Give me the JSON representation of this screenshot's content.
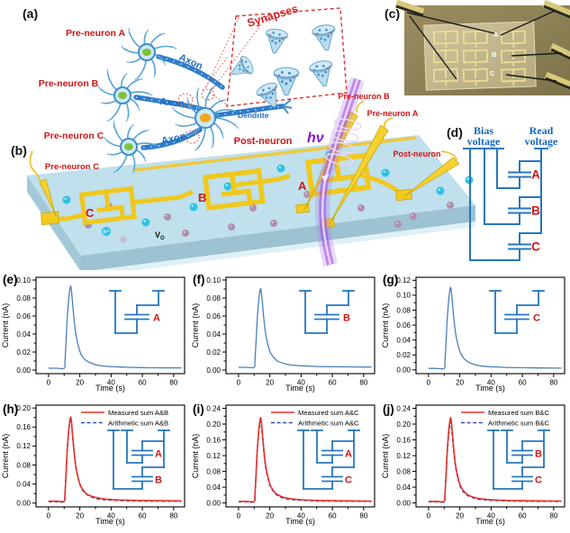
{
  "colors": {
    "curve_blue": "#4a80b8",
    "dash_blue": "#2b52a8",
    "measured_red": "#e8322a",
    "circuit_blue": "#2777bd",
    "label_red": "#cf1616",
    "axon_blue": "#1e6ec6",
    "electrode_yellow": "#f0c81c",
    "beam_purple": "#9f4ae0",
    "bias_text_blue": "#1565c0"
  },
  "panel_a": {
    "label": "(a)",
    "pre_a": "Pre-neuron A",
    "pre_b": "Pre-neuron B",
    "pre_c": "Pre-neuron C",
    "axon": "Axon",
    "dendrite": "Dendrite",
    "post": "Post-neuron",
    "synapses": "Synapses"
  },
  "panel_b": {
    "label": "(b)",
    "pre_c": "Pre-neuron C",
    "pre_b": "Pre-neuron B",
    "pre_a": "Pre-neuron A",
    "post": "Post-neuron",
    "light": "hν",
    "elec_a": "A",
    "elec_b": "B",
    "elec_c": "C",
    "hole": "h⁺",
    "vo_main": "V",
    "vo_sub": "O"
  },
  "panel_c": {
    "label": "(c)",
    "a": "A",
    "b": "B",
    "c": "C"
  },
  "panel_d": {
    "label": "(d)",
    "bias1": "Bias",
    "bias2": "voltage",
    "read1": "Read",
    "read2": "voltage",
    "caps": [
      "A",
      "B",
      "C"
    ]
  },
  "chart_data": [
    {
      "id": "e",
      "panel_label": "(e)",
      "type": "line",
      "xlabel": "Time (s)",
      "ylabel": "Current (nA)",
      "xlim": [
        -8,
        87
      ],
      "ylim": [
        -0.004,
        0.103
      ],
      "xticks": [
        0,
        20,
        40,
        60,
        80
      ],
      "xtick_labels": [
        "0",
        "20",
        "40",
        "60",
        "80"
      ],
      "yticks": [
        0,
        0.02,
        0.04,
        0.06,
        0.08,
        0.1
      ],
      "ytick_labels": [
        "0.00",
        "0.02",
        "0.04",
        "0.06",
        "0.08",
        "0.10"
      ],
      "legend": false,
      "inset_caps": [
        "A"
      ],
      "x": [
        0,
        5,
        10,
        10.5,
        11,
        11.5,
        12,
        13,
        14,
        14.5,
        15,
        16,
        17,
        18,
        20,
        22,
        25,
        30,
        35,
        40,
        50,
        60,
        70,
        85
      ],
      "series": [
        {
          "name": "A",
          "color": "#4a80b8",
          "dash": false,
          "y": [
            0.002,
            0.002,
            0.002,
            0.009,
            0.025,
            0.043,
            0.058,
            0.081,
            0.093,
            0.09,
            0.082,
            0.062,
            0.046,
            0.035,
            0.021,
            0.014,
            0.0095,
            0.006,
            0.0045,
            0.0038,
            0.0031,
            0.0027,
            0.0025,
            0.0024
          ]
        }
      ]
    },
    {
      "id": "f",
      "panel_label": "(f)",
      "type": "line",
      "xlabel": "Time (s)",
      "ylabel": "Current (nA)",
      "xlim": [
        -8,
        87
      ],
      "ylim": [
        -0.004,
        0.103
      ],
      "xticks": [
        0,
        20,
        40,
        60,
        80
      ],
      "xtick_labels": [
        "0",
        "20",
        "40",
        "60",
        "80"
      ],
      "yticks": [
        0,
        0.02,
        0.04,
        0.06,
        0.08,
        0.1
      ],
      "ytick_labels": [
        "0.00",
        "0.02",
        "0.04",
        "0.06",
        "0.08",
        "0.10"
      ],
      "legend": false,
      "inset_caps": [
        "B"
      ],
      "x": [
        0,
        5,
        10,
        10.5,
        11,
        11.5,
        12,
        13,
        14,
        14.5,
        15,
        16,
        17,
        18,
        20,
        22,
        25,
        30,
        35,
        40,
        50,
        60,
        70,
        85
      ],
      "series": [
        {
          "name": "B",
          "color": "#4a80b8",
          "dash": false,
          "y": [
            0.003,
            0.003,
            0.003,
            0.01,
            0.025,
            0.042,
            0.057,
            0.079,
            0.09,
            0.087,
            0.08,
            0.06,
            0.045,
            0.034,
            0.021,
            0.015,
            0.01,
            0.0068,
            0.0054,
            0.0047,
            0.004,
            0.0037,
            0.0035,
            0.0033
          ]
        }
      ]
    },
    {
      "id": "g",
      "panel_label": "(g)",
      "type": "line",
      "xlabel": "Time (s)",
      "ylabel": "Current (nA)",
      "xlim": [
        -8,
        87
      ],
      "ylim": [
        -0.005,
        0.124
      ],
      "xticks": [
        0,
        20,
        40,
        60,
        80
      ],
      "xtick_labels": [
        "0",
        "20",
        "40",
        "60",
        "80"
      ],
      "yticks": [
        0,
        0.02,
        0.04,
        0.06,
        0.08,
        0.1,
        0.12
      ],
      "ytick_labels": [
        "0.00",
        "0.02",
        "0.04",
        "0.06",
        "0.08",
        "0.10",
        "0.12"
      ],
      "legend": false,
      "inset_caps": [
        "C"
      ],
      "x": [
        0,
        5,
        10,
        10.5,
        11,
        11.5,
        12,
        13,
        14,
        14.5,
        15,
        16,
        17,
        18,
        20,
        22,
        25,
        30,
        35,
        40,
        50,
        60,
        70,
        85
      ],
      "series": [
        {
          "name": "C",
          "color": "#4a80b8",
          "dash": false,
          "y": [
            0.002,
            0.002,
            0.002,
            0.011,
            0.029,
            0.051,
            0.069,
            0.096,
            0.11,
            0.107,
            0.097,
            0.073,
            0.054,
            0.041,
            0.025,
            0.017,
            0.011,
            0.0068,
            0.005,
            0.0042,
            0.0033,
            0.0029,
            0.0026,
            0.0024
          ]
        }
      ]
    },
    {
      "id": "h",
      "panel_label": "(h)",
      "type": "line",
      "xlabel": "Time (s)",
      "ylabel": "Current (nA)",
      "xlim": [
        -8,
        87
      ],
      "ylim": [
        -0.008,
        0.206
      ],
      "xticks": [
        0,
        20,
        40,
        60,
        80
      ],
      "xtick_labels": [
        "0",
        "20",
        "40",
        "60",
        "80"
      ],
      "yticks": [
        0,
        0.04,
        0.08,
        0.12,
        0.16,
        0.2
      ],
      "ytick_labels": [
        "0.00",
        "0.04",
        "0.08",
        "0.12",
        "0.16",
        "0.20"
      ],
      "legend": true,
      "inset_caps": [
        "A",
        "B"
      ],
      "x": [
        0,
        5,
        10,
        10.5,
        11,
        11.5,
        12,
        13,
        14,
        14.5,
        15,
        16,
        17,
        18,
        20,
        22,
        25,
        30,
        35,
        40,
        50,
        60,
        70,
        85
      ],
      "series": [
        {
          "name": "Arithmetic sum A&B",
          "color": "#2b52a8",
          "dash": true,
          "y": [
            0.003,
            0.003,
            0.003,
            0.017,
            0.047,
            0.082,
            0.112,
            0.155,
            0.178,
            0.173,
            0.157,
            0.119,
            0.087,
            0.066,
            0.04,
            0.026,
            0.017,
            0.01,
            0.0074,
            0.0062,
            0.005,
            0.0044,
            0.0041,
            0.0038
          ]
        },
        {
          "name": "Measured sum A&B",
          "color": "#e8322a",
          "dash": false,
          "y": [
            0.004,
            0.004,
            0.004,
            0.018,
            0.048,
            0.083,
            0.113,
            0.157,
            0.18,
            0.175,
            0.159,
            0.12,
            0.089,
            0.067,
            0.041,
            0.028,
            0.018,
            0.012,
            0.0089,
            0.0075,
            0.0061,
            0.0054,
            0.0051,
            0.0047
          ]
        }
      ]
    },
    {
      "id": "i",
      "panel_label": "(i)",
      "type": "line",
      "xlabel": "Time (s)",
      "ylabel": "Current (nA)",
      "xlim": [
        -8,
        87
      ],
      "ylim": [
        -0.01,
        0.248
      ],
      "xticks": [
        0,
        20,
        40,
        60,
        80
      ],
      "xtick_labels": [
        "0",
        "20",
        "40",
        "60",
        "80"
      ],
      "yticks": [
        0,
        0.04,
        0.08,
        0.12,
        0.16,
        0.2,
        0.24
      ],
      "ytick_labels": [
        "0.00",
        "0.04",
        "0.08",
        "0.12",
        "0.16",
        "0.20",
        "0.24"
      ],
      "legend": true,
      "inset_caps": [
        "A",
        "C"
      ],
      "x": [
        0,
        5,
        10,
        10.5,
        11,
        11.5,
        12,
        13,
        14,
        14.5,
        15,
        16,
        17,
        18,
        20,
        22,
        25,
        30,
        35,
        40,
        50,
        60,
        70,
        85
      ],
      "series": [
        {
          "name": "Arithmetic sum A&C",
          "color": "#2b52a8",
          "dash": true,
          "y": [
            0.003,
            0.003,
            0.003,
            0.019,
            0.054,
            0.095,
            0.13,
            0.181,
            0.207,
            0.201,
            0.183,
            0.138,
            0.101,
            0.076,
            0.046,
            0.031,
            0.019,
            0.011,
            0.0082,
            0.0068,
            0.0054,
            0.0046,
            0.0043,
            0.0039
          ]
        },
        {
          "name": "Measured sum A&C",
          "color": "#e8322a",
          "dash": false,
          "y": [
            0.004,
            0.004,
            0.004,
            0.021,
            0.057,
            0.099,
            0.135,
            0.188,
            0.215,
            0.209,
            0.19,
            0.143,
            0.105,
            0.08,
            0.048,
            0.033,
            0.021,
            0.013,
            0.0099,
            0.0082,
            0.0065,
            0.0057,
            0.0053,
            0.0048
          ]
        }
      ]
    },
    {
      "id": "j",
      "panel_label": "(j)",
      "type": "line",
      "xlabel": "Time (s)",
      "ylabel": "Current (nA)",
      "xlim": [
        -8,
        87
      ],
      "ylim": [
        -0.01,
        0.248
      ],
      "xticks": [
        0,
        20,
        40,
        60,
        80
      ],
      "xtick_labels": [
        "0",
        "20",
        "40",
        "60",
        "80"
      ],
      "yticks": [
        0,
        0.04,
        0.08,
        0.12,
        0.16,
        0.2,
        0.24
      ],
      "ytick_labels": [
        "0.00",
        "0.04",
        "0.08",
        "0.12",
        "0.16",
        "0.20",
        "0.24"
      ],
      "legend": true,
      "inset_caps": [
        "B",
        "C"
      ],
      "x": [
        0,
        5,
        10,
        10.5,
        11,
        11.5,
        12,
        13,
        14,
        14.5,
        15,
        16,
        17,
        18,
        20,
        22,
        25,
        30,
        35,
        40,
        50,
        60,
        70,
        85
      ],
      "series": [
        {
          "name": "Arithmetic sum B&C",
          "color": "#2b52a8",
          "dash": true,
          "y": [
            0.003,
            0.003,
            0.003,
            0.019,
            0.054,
            0.094,
            0.128,
            0.179,
            0.205,
            0.199,
            0.181,
            0.136,
            0.1,
            0.076,
            0.045,
            0.03,
            0.019,
            0.011,
            0.0082,
            0.0067,
            0.0053,
            0.0046,
            0.0042,
            0.0039
          ]
        },
        {
          "name": "Measured sum B&C",
          "color": "#e8322a",
          "dash": false,
          "y": [
            0.004,
            0.004,
            0.004,
            0.021,
            0.057,
            0.099,
            0.135,
            0.188,
            0.215,
            0.209,
            0.19,
            0.143,
            0.105,
            0.08,
            0.048,
            0.033,
            0.021,
            0.013,
            0.0099,
            0.0082,
            0.0065,
            0.0057,
            0.0053,
            0.0048
          ]
        }
      ]
    }
  ]
}
